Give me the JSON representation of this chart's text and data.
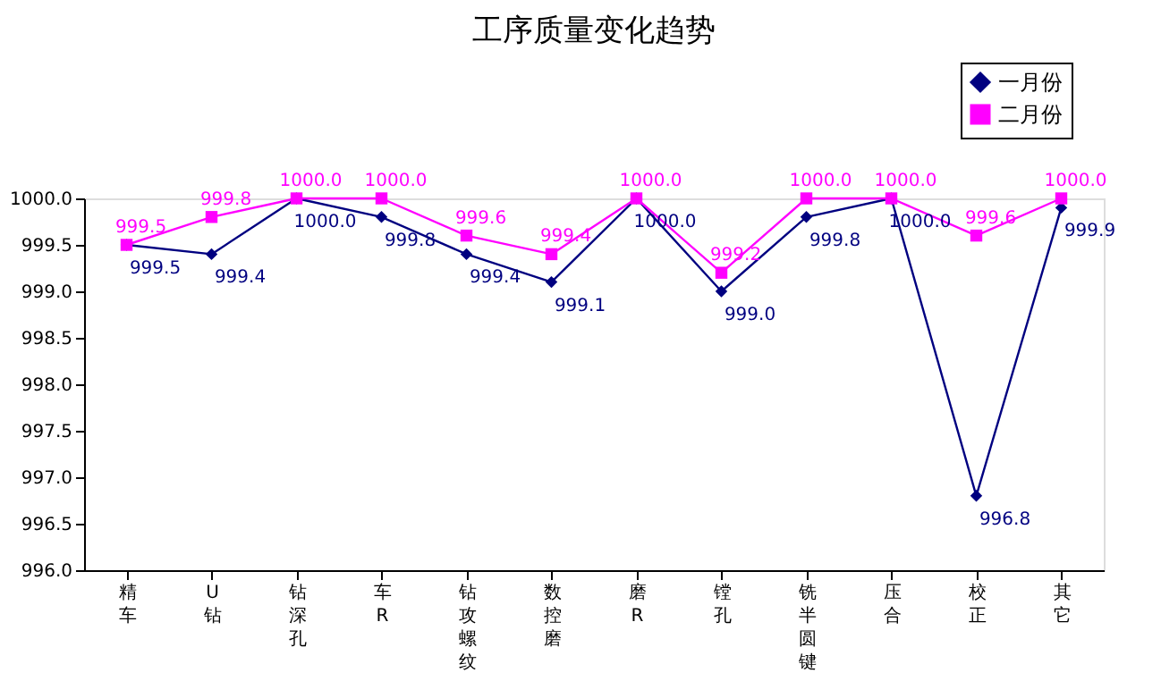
{
  "chart_data": {
    "type": "line",
    "title": "工序质量变化趋势",
    "categories": [
      "精车",
      "U钻",
      "钻深孔",
      "车R",
      "钻攻螺纹",
      "数控磨",
      "磨R",
      "镗孔",
      "铣半圆键",
      "压合",
      "校正",
      "其它"
    ],
    "series": [
      {
        "name": "一月份",
        "color": "#000080",
        "marker": "diamond",
        "values": [
          999.5,
          999.4,
          1000.0,
          999.8,
          999.4,
          999.1,
          1000.0,
          999.0,
          999.8,
          1000.0,
          996.8,
          999.9
        ],
        "value_labels": [
          "999.5",
          "999.4",
          "1000.0",
          "999.8",
          "999.4",
          "999.1",
          "1000.0",
          "999.0",
          "999.8",
          "1000.0",
          "996.8",
          "999.9"
        ]
      },
      {
        "name": "二月份",
        "color": "#ff00ff",
        "marker": "square",
        "values": [
          999.5,
          999.8,
          1000.0,
          1000.0,
          999.6,
          999.4,
          1000.0,
          999.2,
          1000.0,
          1000.0,
          999.6,
          1000.0
        ],
        "value_labels": [
          "999.5",
          "999.8",
          "1000.0",
          "1000.0",
          "999.6",
          "999.4",
          "1000.0",
          "999.2",
          "1000.0",
          "1000.0",
          "999.6",
          "1000.0"
        ]
      }
    ],
    "ylim": [
      996.0,
      1000.0
    ],
    "yticks": [
      {
        "value": 996.0,
        "label": "996.0"
      },
      {
        "value": 996.5,
        "label": "996.5"
      },
      {
        "value": 997.0,
        "label": "997.0"
      },
      {
        "value": 997.5,
        "label": "997.5"
      },
      {
        "value": 998.0,
        "label": "998.0"
      },
      {
        "value": 998.5,
        "label": "998.5"
      },
      {
        "value": 999.0,
        "label": "999.0"
      },
      {
        "value": 999.5,
        "label": "999.5"
      },
      {
        "value": 1000.0,
        "label": "1000.0"
      }
    ],
    "legend": "top right",
    "grid": false,
    "line_style": "solid"
  }
}
